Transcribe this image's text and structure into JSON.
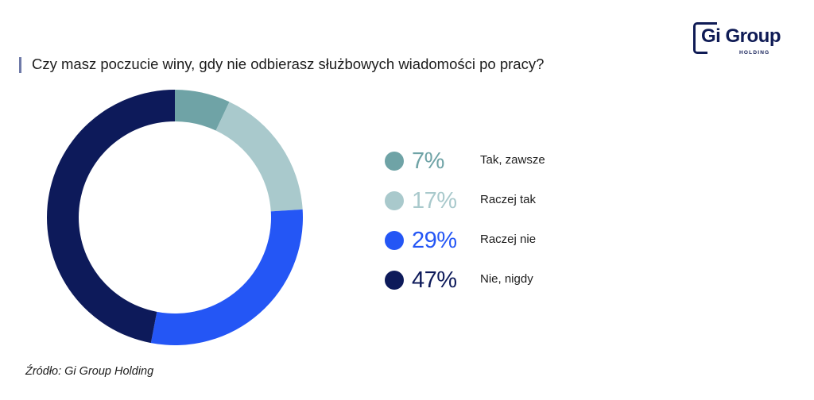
{
  "chart_data": {
    "type": "pie",
    "title": "Czy masz poczucie winy, gdy nie odbierasz służbowych wiadomości po pracy?",
    "slices": [
      {
        "label": "Tak, zawsze",
        "value": 7,
        "display": "7%",
        "color": "#6fa3a6"
      },
      {
        "label": "Raczej tak",
        "value": 17,
        "display": "17%",
        "color": "#a9c9cc"
      },
      {
        "label": "Raczej nie",
        "value": 29,
        "display": "29%",
        "color": "#2456f5"
      },
      {
        "label": "Nie, nigdy",
        "value": 47,
        "display": "47%",
        "color": "#0d1a5a"
      }
    ],
    "legend_position": "right"
  },
  "source": "Źródło: Gi Group Holding",
  "logo": {
    "name": "Gi Group",
    "sub": "HOLDING"
  }
}
